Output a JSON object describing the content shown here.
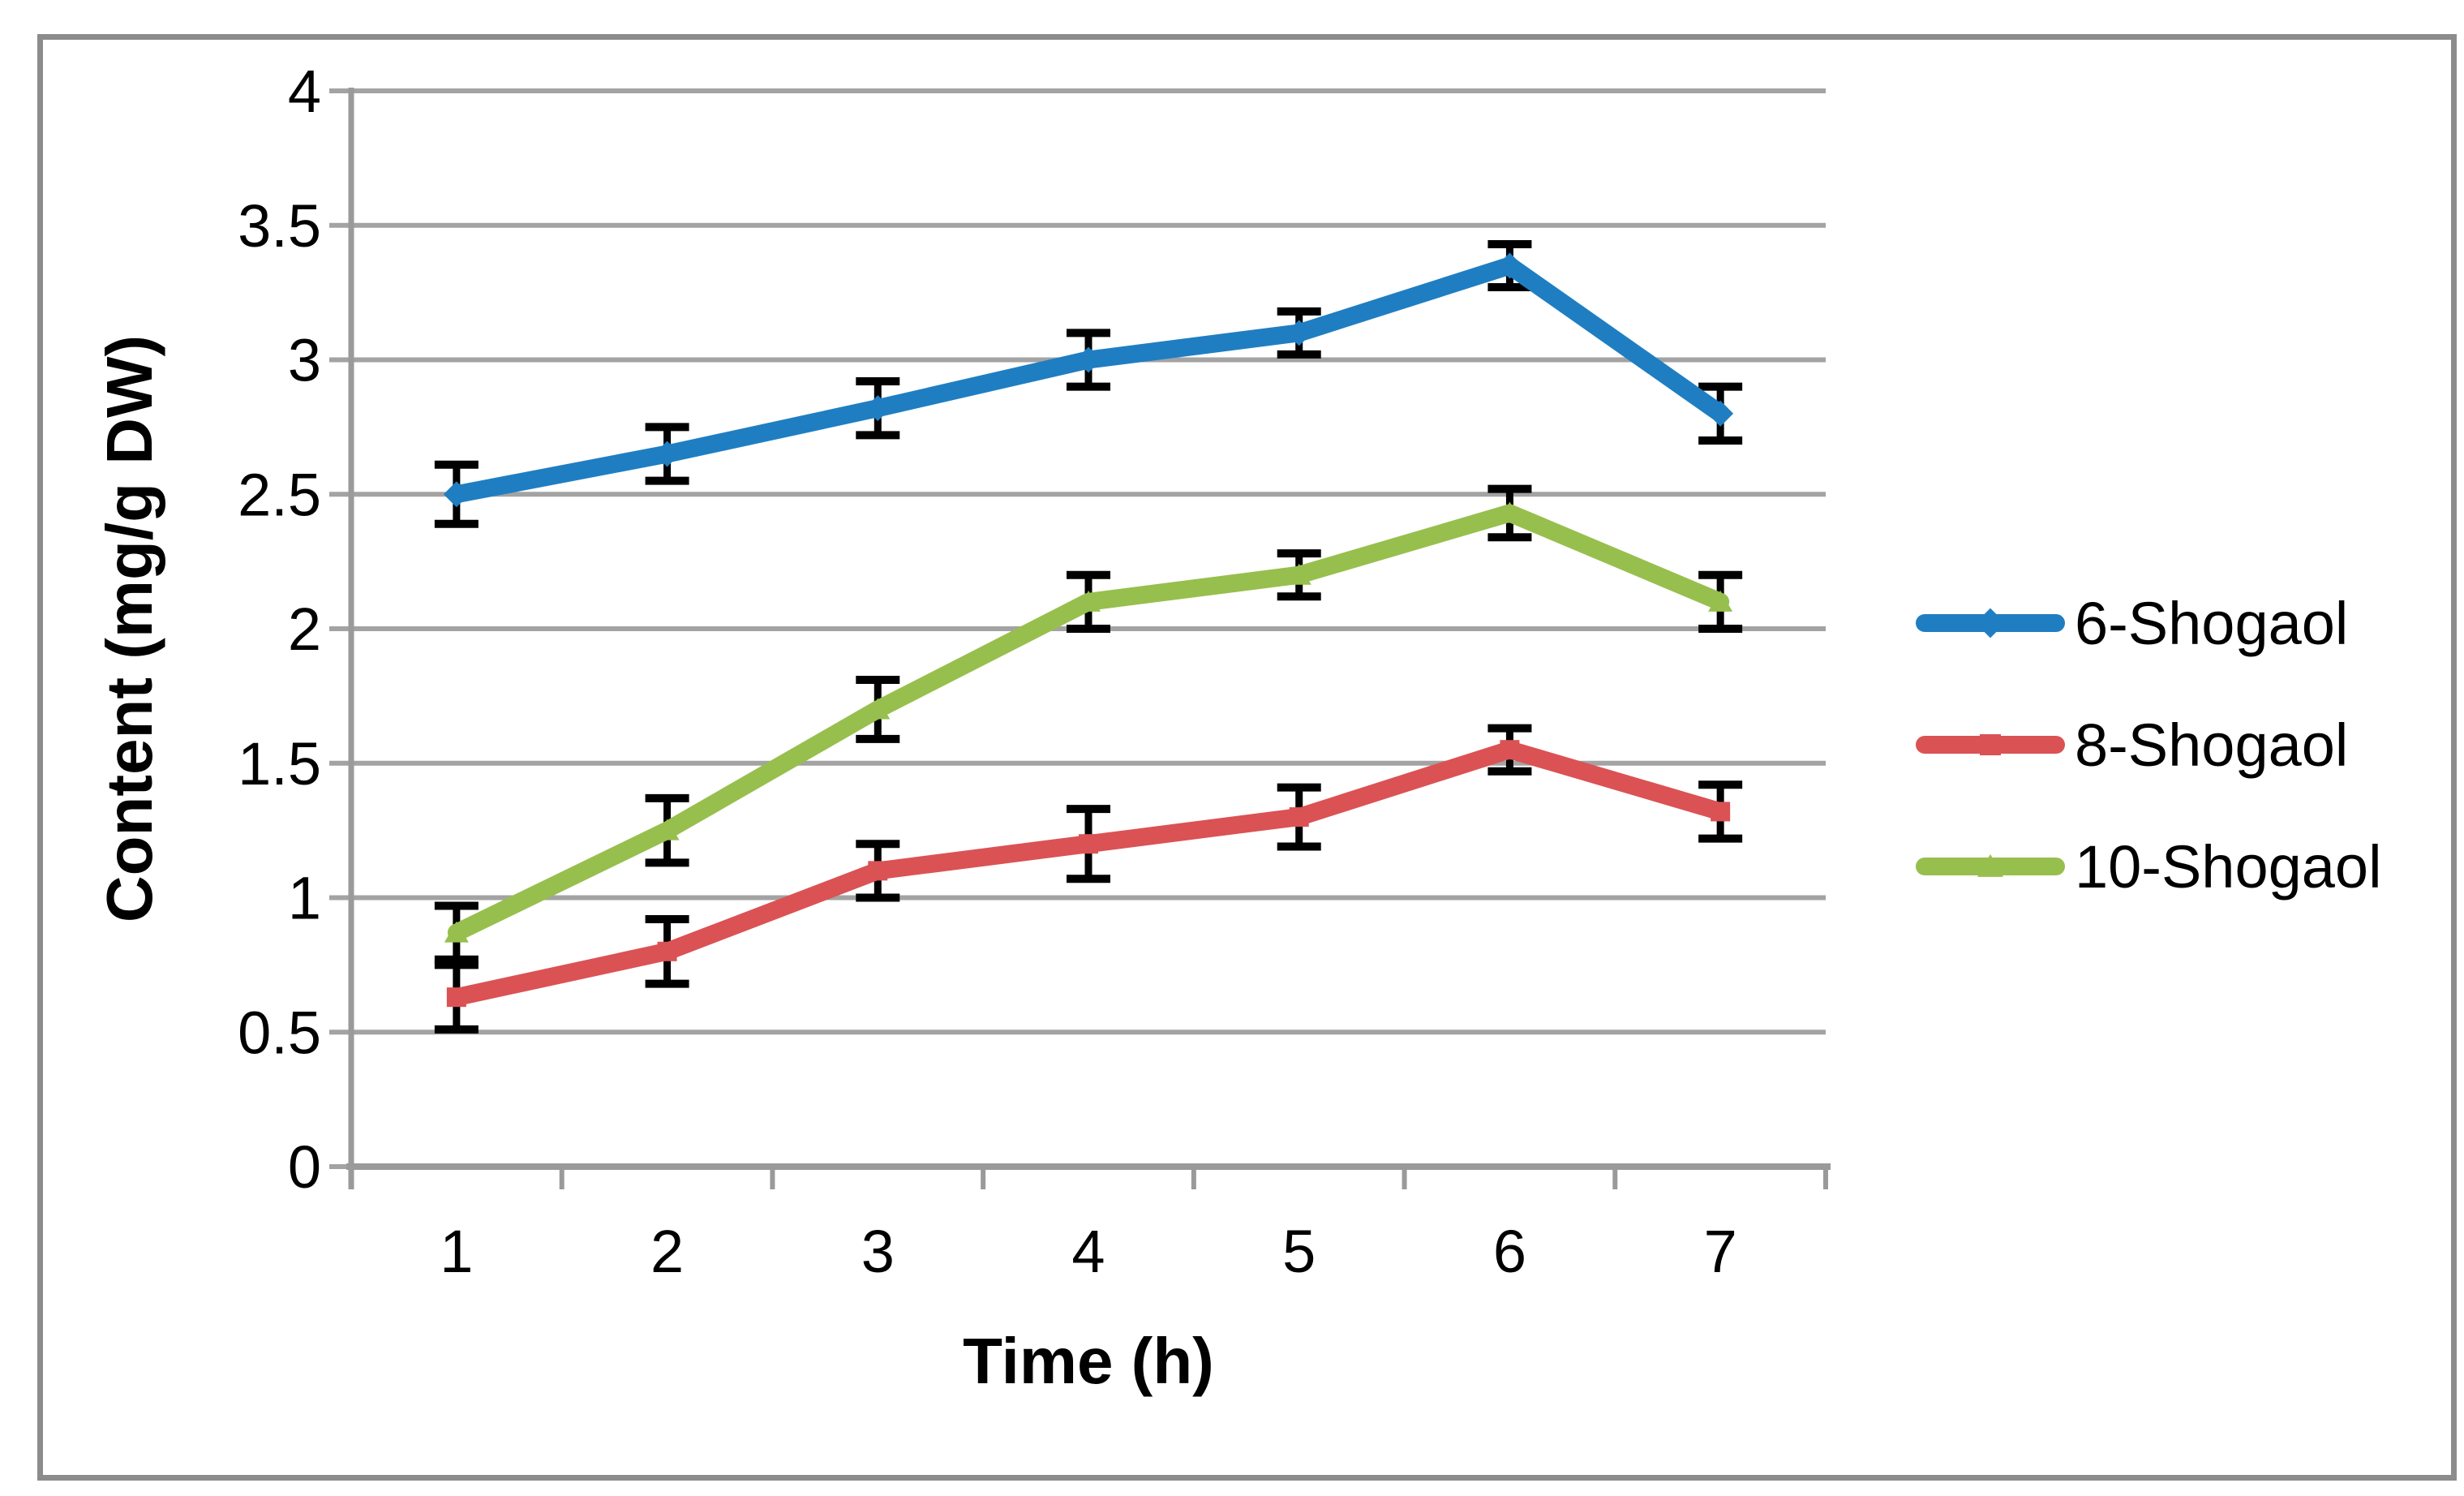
{
  "chart_data": {
    "type": "line",
    "title": "",
    "xlabel": "Time (h)",
    "ylabel": "Content (mg/g DW)",
    "x": [
      1,
      2,
      3,
      4,
      5,
      6,
      7
    ],
    "ylim": [
      0,
      4
    ],
    "ytick_step": 0.5,
    "ytick_labels": [
      "0",
      "0.5",
      "1",
      "1.5",
      "2",
      "2.5",
      "3",
      "3.5",
      "4"
    ],
    "grid": true,
    "legend_position": "right",
    "error_bars": true,
    "series": [
      {
        "name": "6-Shogaol",
        "color": "#1F7EC2",
        "marker": "diamond",
        "values": [
          2.5,
          2.65,
          2.82,
          3.0,
          3.1,
          3.35,
          2.8
        ],
        "errors": [
          0.11,
          0.1,
          0.1,
          0.1,
          0.08,
          0.08,
          0.1
        ]
      },
      {
        "name": "8-Shogaol",
        "color": "#DB5254",
        "marker": "square",
        "values": [
          0.63,
          0.8,
          1.1,
          1.2,
          1.3,
          1.55,
          1.32
        ],
        "errors": [
          0.12,
          0.12,
          0.1,
          0.13,
          0.11,
          0.08,
          0.1
        ]
      },
      {
        "name": "10-Shogaol",
        "color": "#97BF4D",
        "marker": "triangle",
        "values": [
          0.87,
          1.25,
          1.7,
          2.1,
          2.2,
          2.43,
          2.1
        ],
        "errors": [
          0.1,
          0.12,
          0.11,
          0.1,
          0.08,
          0.09,
          0.1
        ]
      }
    ],
    "style_colors": {
      "gridline": "#A3A3A3",
      "axis": "#9A9A9A",
      "outer_border": "#8C8C8C",
      "error_bar": "#000000",
      "text": "#000000"
    }
  }
}
